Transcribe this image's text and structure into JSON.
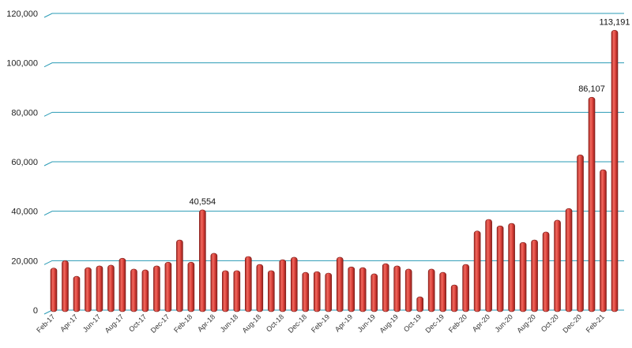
{
  "chart_data": {
    "type": "bar",
    "title": "",
    "xlabel": "",
    "ylabel": "",
    "ylim": [
      0,
      120000
    ],
    "yticks": [
      "0",
      "20,000",
      "40,000",
      "60,000",
      "80,000",
      "100,000",
      "120,000"
    ],
    "ytick_values": [
      0,
      20000,
      40000,
      60000,
      80000,
      100000,
      120000
    ],
    "grid": true,
    "legend": "none",
    "bar_color": "#e0453e",
    "grid_color": "#2a9bb5",
    "categories": [
      "Feb-17",
      "Mar-17",
      "Apr-17",
      "May-17",
      "Jun-17",
      "Jul-17",
      "Aug-17",
      "Sep-17",
      "Oct-17",
      "Nov-17",
      "Dec-17",
      "Jan-18",
      "Feb-18",
      "Mar-18",
      "Apr-18",
      "May-18",
      "Jun-18",
      "Jul-18",
      "Aug-18",
      "Sep-18",
      "Oct-18",
      "Nov-18",
      "Dec-18",
      "Jan-19",
      "Feb-19",
      "Mar-19",
      "Apr-19",
      "May-19",
      "Jun-19",
      "Jul-19",
      "Aug-19",
      "Sep-19",
      "Oct-19",
      "Nov-19",
      "Dec-19",
      "Jan-20",
      "Feb-20",
      "Mar-20",
      "Apr-20",
      "May-20",
      "Jun-20",
      "Jul-20",
      "Aug-20",
      "Sep-20",
      "Oct-20",
      "Nov-20",
      "Dec-20",
      "Jan-21",
      "Feb-21",
      "Mar-21"
    ],
    "tick_labels": [
      "Feb-17",
      "Apr-17",
      "Jun-17",
      "Aug-17",
      "Oct-17",
      "Dec-17",
      "Feb-18",
      "Apr-18",
      "Jun-18",
      "Aug-18",
      "Oct-18",
      "Dec-18",
      "Feb-19",
      "Apr-19",
      "Jun-19",
      "Aug-19",
      "Oct-19",
      "Dec-19",
      "Feb-20",
      "Apr-20",
      "Jun-20",
      "Aug-20",
      "Oct-20",
      "Dec-20",
      "Feb-21"
    ],
    "values": [
      17000,
      20000,
      13700,
      17200,
      17900,
      18200,
      21000,
      16600,
      16300,
      17900,
      19400,
      28400,
      19400,
      40554,
      23000,
      16000,
      16000,
      21700,
      18500,
      16000,
      20400,
      21400,
      15300,
      15600,
      15000,
      21400,
      17500,
      17200,
      14700,
      18800,
      17900,
      16600,
      5400,
      16600,
      15300,
      10200,
      18500,
      32000,
      36700,
      34100,
      35100,
      27400,
      28400,
      31600,
      36400,
      41100,
      62800,
      86107,
      56800,
      113191
    ],
    "data_labels": [
      {
        "category": "Mar-18",
        "text": "40,554"
      },
      {
        "category": "Jan-21",
        "text": "86,107"
      },
      {
        "category": "Mar-21",
        "text": "113,191"
      }
    ]
  }
}
